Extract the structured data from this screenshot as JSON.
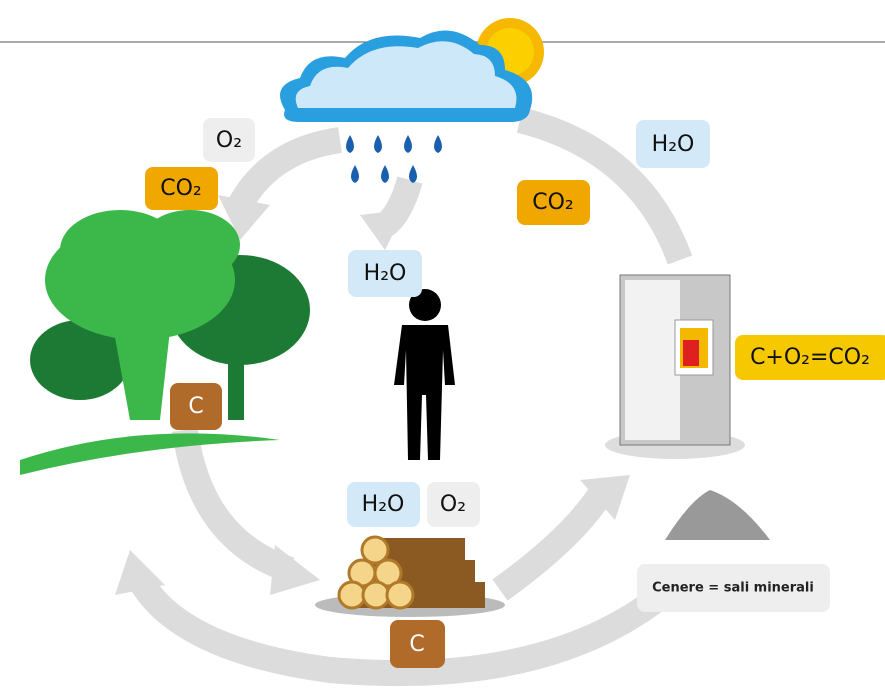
{
  "labels": [
    "O₂",
    "CO₂",
    "H₂O",
    "CO₂",
    "H₂O",
    "C+O₂=CO₂",
    "C",
    "H₂O",
    "O₂",
    "C",
    "Cenere = sali minerali"
  ]
}
